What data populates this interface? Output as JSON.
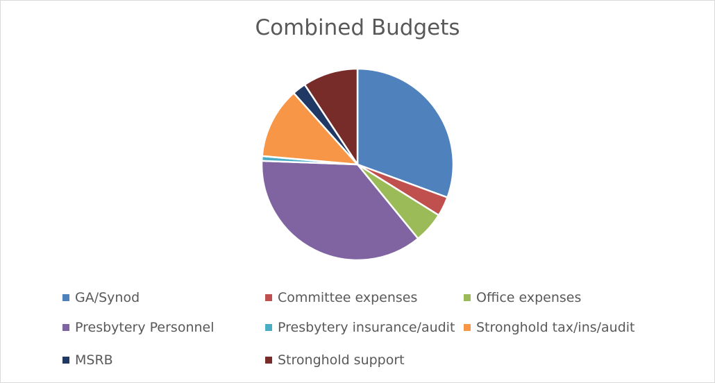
{
  "chart_data": {
    "type": "pie",
    "title": "Combined Budgets",
    "legend_position": "bottom",
    "slices": [
      {
        "label": "GA/Synod",
        "value": 30.6,
        "color": "#4f81bd"
      },
      {
        "label": "Committee expenses",
        "value": 3.3,
        "color": "#c0504d"
      },
      {
        "label": "Office expenses",
        "value": 5.2,
        "color": "#9bbb59"
      },
      {
        "label": "Presbytery Personnel",
        "value": 36.5,
        "color": "#8064a2"
      },
      {
        "label": "Presbytery insurance/audit",
        "value": 0.8,
        "color": "#4bacc6"
      },
      {
        "label": "Stronghold tax/ins/audit",
        "value": 12.0,
        "color": "#f79646"
      },
      {
        "label": "MSRB",
        "value": 2.3,
        "color": "#1f3864"
      },
      {
        "label": "Stronghold support",
        "value": 9.3,
        "color": "#772c2a"
      }
    ]
  }
}
